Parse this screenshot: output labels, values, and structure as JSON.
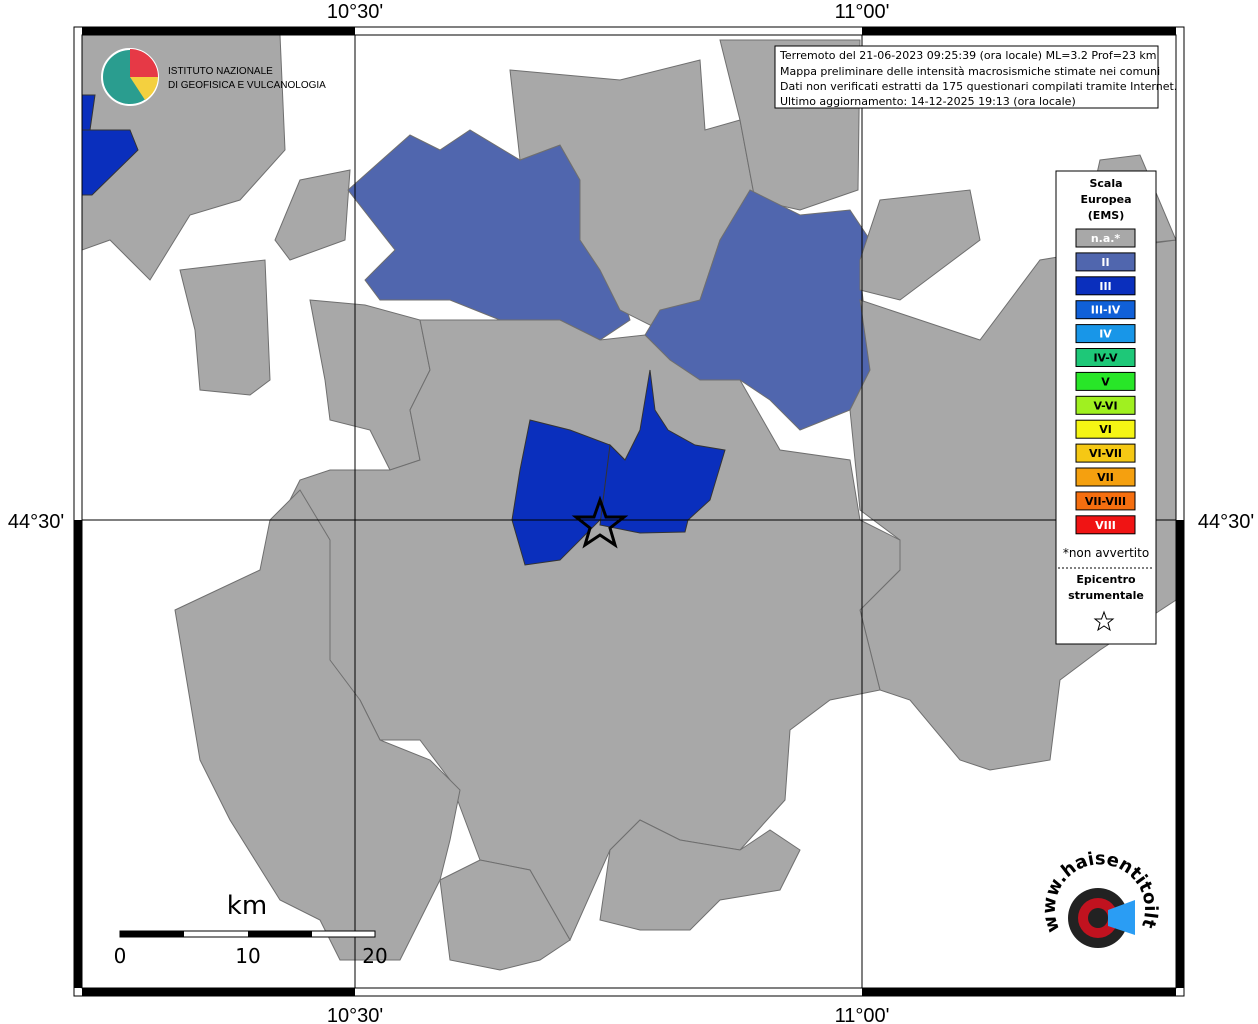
{
  "map": {
    "axis_labels": {
      "top": [
        "10°30'",
        "11°00'"
      ],
      "bottom": [
        "10°30'",
        "11°00'"
      ],
      "left": "44°30'",
      "right": "44°30'"
    },
    "info_box": [
      "Terremoto del 21-06-2023 09:25:39 (ora locale) ML=3.2 Prof=23 km",
      "Mappa preliminare delle intensità macrosismiche stimate nei comuni",
      "Dati non verificati estratti da 175 questionari compilati tramite Internet.",
      "Ultimo aggiornamento: 14-12-2025 19:13 (ora locale)"
    ],
    "legend": {
      "title": [
        "Scala",
        "Europea",
        "(EMS)"
      ],
      "items": [
        {
          "label": "n.a.*",
          "color": "#a8a8a8",
          "text_color": "#ffffff"
        },
        {
          "label": "II",
          "color": "#5066ae",
          "text_color": "#ffffff"
        },
        {
          "label": "III",
          "color": "#0a2fbd",
          "text_color": "#ffffff"
        },
        {
          "label": "III-IV",
          "color": "#1060d8",
          "text_color": "#ffffff"
        },
        {
          "label": "IV",
          "color": "#1896e8",
          "text_color": "#ffffff"
        },
        {
          "label": "IV-V",
          "color": "#1ec878",
          "text_color": "#000000"
        },
        {
          "label": "V",
          "color": "#28e628",
          "text_color": "#000000"
        },
        {
          "label": "V-VI",
          "color": "#a0f020",
          "text_color": "#000000"
        },
        {
          "label": "VI",
          "color": "#f5f514",
          "text_color": "#000000"
        },
        {
          "label": "VI-VII",
          "color": "#f5c814",
          "text_color": "#000000"
        },
        {
          "label": "VII",
          "color": "#f5a00f",
          "text_color": "#000000"
        },
        {
          "label": "VII-VIII",
          "color": "#f56e0f",
          "text_color": "#000000"
        },
        {
          "label": "VIII",
          "color": "#f01414",
          "text_color": "#ffffff"
        }
      ],
      "note": "*non avvertito",
      "epicenter": [
        "Epicentro",
        "strumentale"
      ]
    },
    "scale_bar": {
      "unit": "km",
      "labels": [
        "0",
        "10",
        "20"
      ]
    },
    "logos": {
      "ingv": [
        "ISTITUTO NAZIONALE",
        "DI GEOFISICA E VULCANOLOGIA"
      ],
      "site": "www.haisentitoilterremoto.it"
    }
  }
}
